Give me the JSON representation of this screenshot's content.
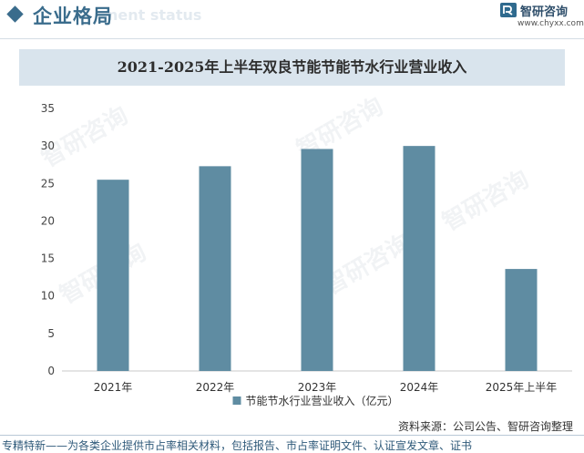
{
  "header": {
    "title": "企业格局",
    "ghost_text": "nent status",
    "logo_name": "智研咨询",
    "logo_url": "www.chyxx.com",
    "accent_color": "#3a6c8c"
  },
  "watermark": {
    "text": "智研咨询"
  },
  "chart_data": {
    "type": "bar",
    "title": "2021-2025年上半年双良节能节能节水行业营业收入",
    "categories": [
      "2021年",
      "2022年",
      "2023年",
      "2024年",
      "2025年上半年"
    ],
    "series": [
      {
        "name": "节能节水行业营业收入（亿元）",
        "values": [
          25.5,
          27.3,
          29.6,
          30.0,
          13.6
        ],
        "color": "#5f8ca2"
      }
    ],
    "ylim": [
      0,
      35
    ],
    "yticks": [
      0,
      5,
      10,
      15,
      20,
      25,
      30,
      35
    ],
    "grid": false,
    "legend_position": "bottom"
  },
  "footer": {
    "source": "资料来源：公司公告、智研咨询整理",
    "slogan": "专精特新——为各类企业提供市占率相关材料，包括报告、市占率证明文件、认证宣发文章、证书"
  }
}
